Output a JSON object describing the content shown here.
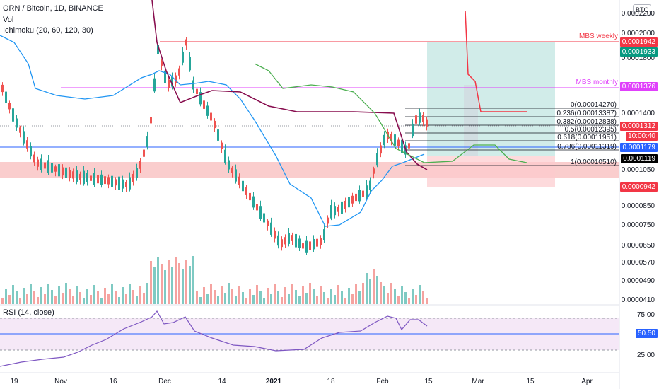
{
  "header": {
    "title": "ORN / Bitcoin, 1D, BINANCE",
    "vol_label": "Vol",
    "ichimoku_label": "Ichimoku (20, 60, 120, 30)",
    "rsi_label": "RSI (14, close)",
    "currency_badge": "BTC"
  },
  "price_axis": {
    "ticks": [
      "0.0002200",
      "0.0002000",
      "0.0001800",
      "0.0001400",
      "0.0001050",
      "0.0000850",
      "0.0000750",
      "0.0000650",
      "0.0000570",
      "0.0000490",
      "0.0000410"
    ],
    "labels": [
      {
        "text": "0.0001942",
        "color": "#f23645"
      },
      {
        "text": "0.0001933",
        "color": "#089981"
      },
      {
        "text": "0.0001376",
        "color": "#e040fb"
      },
      {
        "text": "0.0001312",
        "color": "#f23645"
      },
      {
        "text": "10:00:40",
        "color": "#f23645"
      },
      {
        "text": "0.0001179",
        "color": "#2962ff"
      },
      {
        "text": "0.0001119",
        "color": "#000000"
      },
      {
        "text": "0.0000942",
        "color": "#f23645"
      }
    ]
  },
  "rsi_axis": {
    "ticks": [
      "75.00",
      "25.00"
    ],
    "value_label": "50.50"
  },
  "time_axis": [
    "19",
    "Nov",
    "16",
    "Dec",
    "14",
    "2021",
    "18",
    "Feb",
    "15",
    "Mar",
    "15",
    "Apr"
  ],
  "annotations": {
    "mbs_weekly": "MBS weekly",
    "mbs_monthly": "MBS monthly",
    "fib_levels": [
      "0(0.00014270)",
      "0.236(0.00013387)",
      "0.382(0.00012838)",
      "0.5(0.00012395)",
      "0.618(0.00011951)",
      "0.786(0.00011319)",
      "1(0.00010510)"
    ]
  },
  "colors": {
    "up": "#26a69a",
    "down": "#ef5350",
    "vol_up": "#7fcac3",
    "vol_down": "#f5a3a0",
    "rsi_line": "#7e57c2"
  }
}
